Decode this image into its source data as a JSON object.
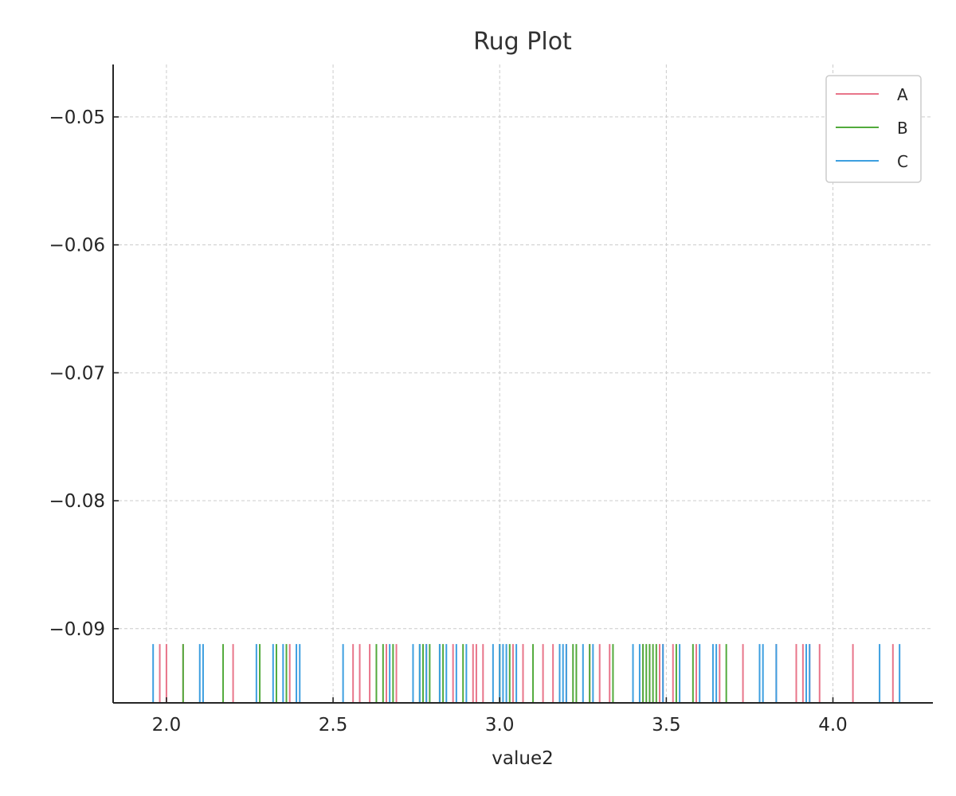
{
  "chart_data": {
    "type": "scatter",
    "subtype": "rug",
    "title": "Rug Plot",
    "xlabel": "value2",
    "ylabel": "",
    "xlim": [
      1.84,
      4.3
    ],
    "ylim": [
      -0.0958,
      -0.0459
    ],
    "x_ticks": [
      2.0,
      2.5,
      3.0,
      3.5,
      4.0
    ],
    "x_tick_labels": [
      "2.0",
      "2.5",
      "3.0",
      "3.5",
      "4.0"
    ],
    "y_ticks": [
      -0.05,
      -0.06,
      -0.07,
      -0.08,
      -0.09
    ],
    "y_tick_labels": [
      "−0.05",
      "−0.06",
      "−0.07",
      "−0.08",
      "−0.09"
    ],
    "grid": true,
    "legend_position": "top-right",
    "rug_height": 0.0046,
    "series": [
      {
        "name": "A",
        "color": "#e8758a",
        "values": [
          1.98,
          2.0,
          2.05,
          2.2,
          2.37,
          2.56,
          2.58,
          2.61,
          2.66,
          2.69,
          2.78,
          2.86,
          2.92,
          2.93,
          2.95,
          3.0,
          3.04,
          3.07,
          3.13,
          3.16,
          3.2,
          3.27,
          3.3,
          3.33,
          3.43,
          3.45,
          3.48,
          3.49,
          3.52,
          3.59,
          3.66,
          3.73,
          3.83,
          3.89,
          3.91,
          3.93,
          3.96,
          4.06,
          4.18
        ]
      },
      {
        "name": "B",
        "color": "#52aa3c",
        "values": [
          2.05,
          2.17,
          2.28,
          2.33,
          2.36,
          2.63,
          2.65,
          2.68,
          2.76,
          2.77,
          2.79,
          2.82,
          2.83,
          2.89,
          3.0,
          3.03,
          3.1,
          3.18,
          3.22,
          3.23,
          3.27,
          3.34,
          3.43,
          3.44,
          3.45,
          3.46,
          3.47,
          3.53,
          3.58,
          3.68
        ]
      },
      {
        "name": "C",
        "color": "#3d9fe0",
        "values": [
          1.96,
          2.1,
          2.11,
          2.27,
          2.32,
          2.35,
          2.39,
          2.4,
          2.53,
          2.67,
          2.74,
          2.76,
          2.78,
          2.82,
          2.84,
          2.87,
          2.9,
          2.98,
          3.0,
          3.01,
          3.02,
          3.05,
          3.18,
          3.19,
          3.2,
          3.25,
          3.28,
          3.4,
          3.42,
          3.49,
          3.54,
          3.6,
          3.64,
          3.65,
          3.78,
          3.79,
          3.83,
          3.92,
          3.93,
          4.14,
          4.2
        ]
      }
    ]
  }
}
